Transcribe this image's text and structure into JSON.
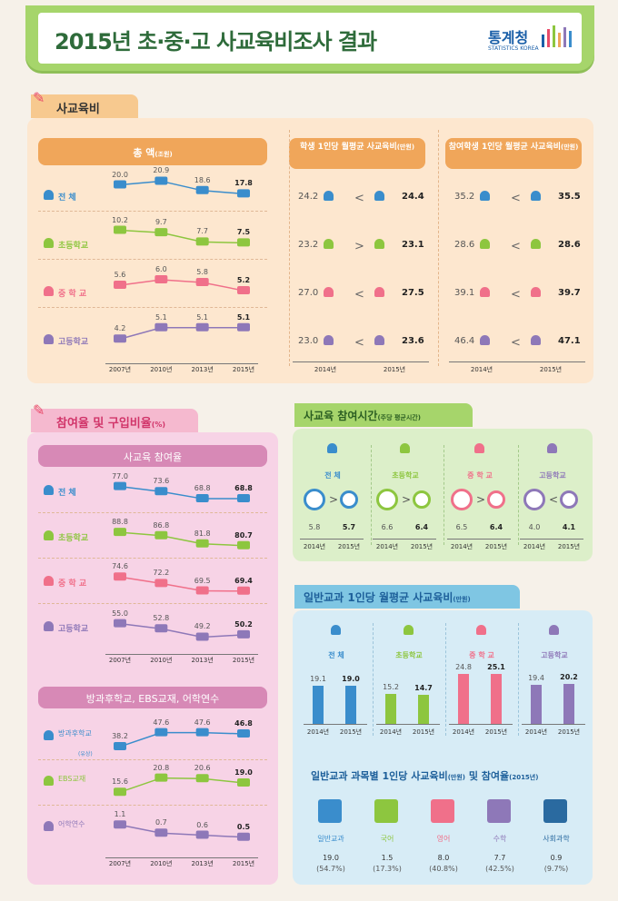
{
  "header": {
    "title": "2015년 초·중·고 사교육비조사 결과",
    "logo": "통계청",
    "logo_sub": "STATISTICS KOREA"
  },
  "sec1": {
    "tab": "사교육비",
    "total_banner": "총 액",
    "total_unit": "(조원)",
    "per_student_banner": "학생 1인당 월평균 사교육비",
    "per_student_unit": "(만원)",
    "per_participant_banner": "참여학생 1인당 월평균 사교육비",
    "per_participant_unit": "(만원)",
    "rows": [
      "전 체",
      "초등학교",
      "중 학 교",
      "고등학교"
    ]
  },
  "sec2": {
    "tab": "참여율 및 구입비율",
    "tab_unit": "(%)",
    "participation_banner": "사교육 참여율",
    "purchase_banner": "방과후학교, EBS교재, 어학연수",
    "purchase_rows": [
      "방과후학교",
      "EBS교재",
      "어학연수"
    ],
    "purchase_sub": "(유상)"
  },
  "sec3": {
    "title": "사교육 참여시간",
    "unit": "(주당 평균시간)",
    "groups": [
      "전 체",
      "초등학교",
      "중 학 교",
      "고등학교"
    ],
    "years": [
      "2014년",
      "2015년"
    ]
  },
  "sec4": {
    "title": "일반교과 1인당 월평균 사교육비",
    "unit": "(만원)",
    "groups": [
      "전 체",
      "초등학교",
      "중 학 교",
      "고등학교"
    ],
    "years": [
      "2014년",
      "2015년"
    ]
  },
  "sec5": {
    "title": "일반교과 과목별 1인당 사교육비",
    "unit1": "(만원)",
    "mid": " 및 참여율",
    "unit2": "(2015년)"
  },
  "chart_data": [
    {
      "type": "line",
      "title": "총 액",
      "x": [
        "2007년",
        "2010년",
        "2013년",
        "2015년"
      ],
      "series": [
        {
          "name": "전 체",
          "values": [
            20.0,
            20.9,
            18.6,
            17.8
          ]
        },
        {
          "name": "초등학교",
          "values": [
            10.2,
            9.7,
            7.7,
            7.5
          ]
        },
        {
          "name": "중 학 교",
          "values": [
            5.6,
            6.0,
            5.8,
            5.2
          ]
        },
        {
          "name": "고등학교",
          "values": [
            4.2,
            5.1,
            5.1,
            5.1
          ]
        }
      ]
    },
    {
      "type": "table",
      "title": "학생 1인당 월평균 사교육비",
      "x": [
        "2014년",
        "2015년"
      ],
      "series": [
        {
          "name": "전 체",
          "values": [
            24.2,
            24.4
          ],
          "sign": "<"
        },
        {
          "name": "초등학교",
          "values": [
            23.2,
            23.1
          ],
          "sign": ">"
        },
        {
          "name": "중 학 교",
          "values": [
            27.0,
            27.5
          ],
          "sign": "<"
        },
        {
          "name": "고등학교",
          "values": [
            23.0,
            23.6
          ],
          "sign": "<"
        }
      ]
    },
    {
      "type": "table",
      "title": "참여학생 1인당 월평균 사교육비",
      "x": [
        "2014년",
        "2015년"
      ],
      "series": [
        {
          "name": "전 체",
          "values": [
            35.2,
            35.5
          ],
          "sign": "<"
        },
        {
          "name": "초등학교",
          "values": [
            28.6,
            28.6
          ],
          "sign": "<"
        },
        {
          "name": "중 학 교",
          "values": [
            39.1,
            39.7
          ],
          "sign": "<"
        },
        {
          "name": "고등학교",
          "values": [
            46.4,
            47.1
          ],
          "sign": "<"
        }
      ]
    },
    {
      "type": "line",
      "title": "사교육 참여율",
      "x": [
        "2007년",
        "2010년",
        "2013년",
        "2015년"
      ],
      "series": [
        {
          "name": "전 체",
          "values": [
            77.0,
            73.6,
            68.8,
            68.8
          ]
        },
        {
          "name": "초등학교",
          "values": [
            88.8,
            86.8,
            81.8,
            80.7
          ]
        },
        {
          "name": "중 학 교",
          "values": [
            74.6,
            72.2,
            69.5,
            69.4
          ]
        },
        {
          "name": "고등학교",
          "values": [
            55.0,
            52.8,
            49.2,
            50.2
          ]
        }
      ]
    },
    {
      "type": "line",
      "title": "방과후학교, EBS교재, 어학연수",
      "x": [
        "2007년",
        "2010년",
        "2013년",
        "2015년"
      ],
      "series": [
        {
          "name": "방과후학교",
          "values": [
            38.2,
            47.6,
            47.6,
            46.8
          ]
        },
        {
          "name": "EBS교재",
          "values": [
            15.6,
            20.8,
            20.6,
            19.0
          ]
        },
        {
          "name": "어학연수",
          "values": [
            1.1,
            0.7,
            0.6,
            0.5
          ]
        }
      ]
    },
    {
      "type": "table",
      "title": "사교육 참여시간",
      "x": [
        "2014년",
        "2015년"
      ],
      "series": [
        {
          "name": "전 체",
          "values": [
            5.8,
            5.7
          ],
          "sign": ">"
        },
        {
          "name": "초등학교",
          "values": [
            6.6,
            6.4
          ],
          "sign": ">"
        },
        {
          "name": "중 학 교",
          "values": [
            6.5,
            6.4
          ],
          "sign": ">"
        },
        {
          "name": "고등학교",
          "values": [
            4.0,
            4.1
          ],
          "sign": "<"
        }
      ]
    },
    {
      "type": "bar",
      "title": "일반교과 1인당 월평균 사교육비",
      "categories": [
        "2014년",
        "2015년"
      ],
      "series": [
        {
          "name": "전 체",
          "values": [
            19.1,
            19.0
          ]
        },
        {
          "name": "초등학교",
          "values": [
            15.2,
            14.7
          ]
        },
        {
          "name": "중 학 교",
          "values": [
            24.8,
            25.1
          ]
        },
        {
          "name": "고등학교",
          "values": [
            19.4,
            20.2
          ]
        }
      ]
    },
    {
      "type": "table",
      "title": "일반교과 과목별 1인당 사교육비 및 참여율",
      "categories": [
        "일반교과",
        "국어",
        "영어",
        "수학",
        "사회과학"
      ],
      "values": [
        19.0,
        1.5,
        8.0,
        7.7,
        0.9
      ],
      "rates": [
        "(54.7%)",
        "(17.3%)",
        "(40.8%)",
        "(42.5%)",
        "(9.7%)"
      ]
    }
  ],
  "colors": {
    "orange": "#f0a65a",
    "green": "#8dc63f",
    "pink": "#f0708a",
    "purple": "#8e78b8",
    "blue": "#3a8dcc"
  }
}
